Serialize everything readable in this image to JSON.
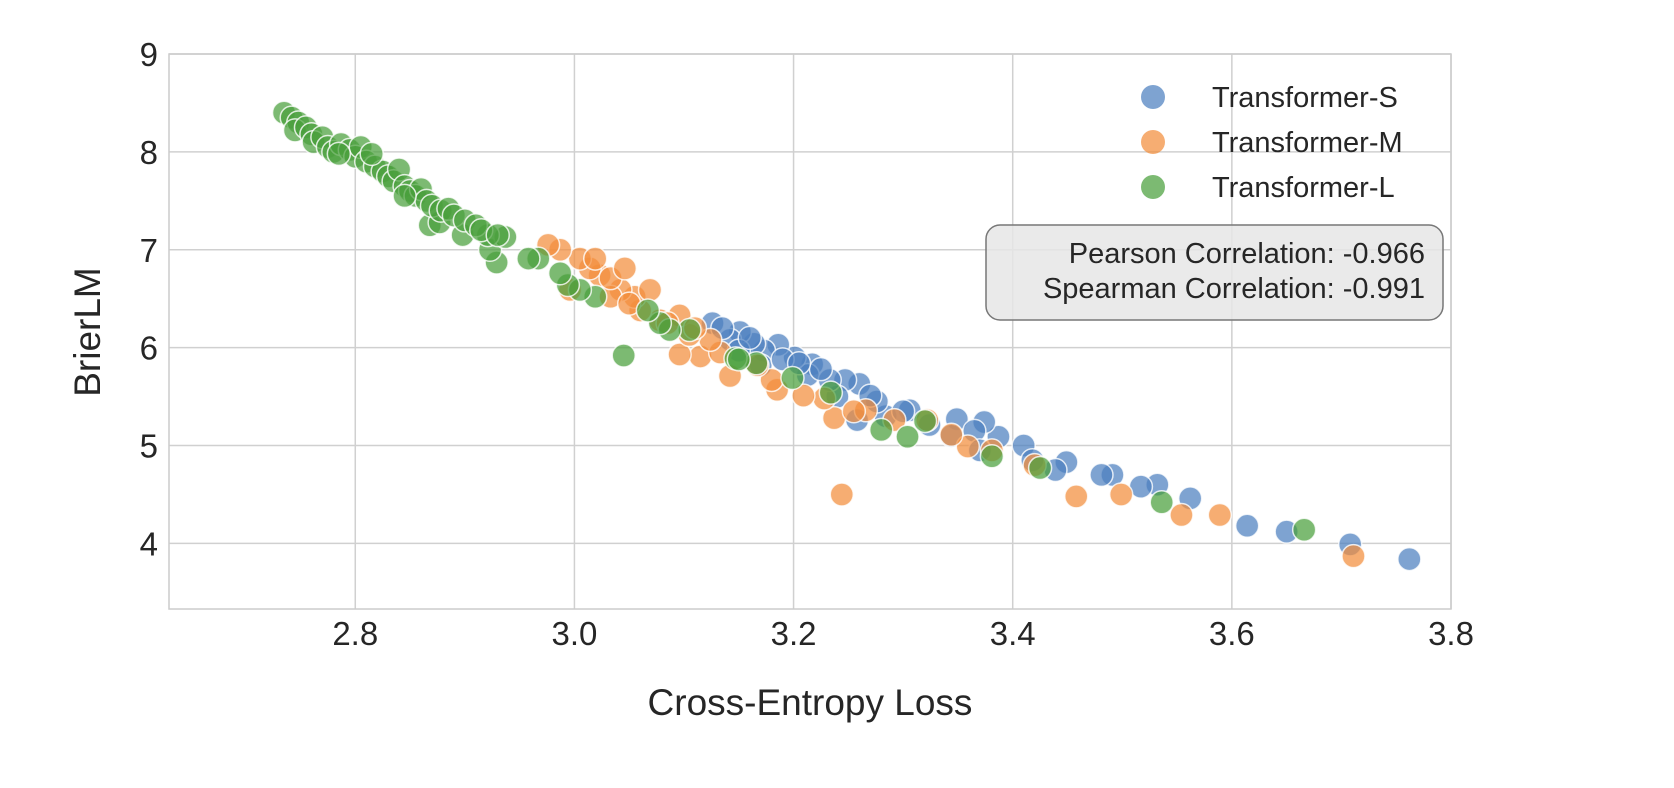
{
  "chart_data": {
    "type": "scatter",
    "title": "",
    "xlabel": "Cross-Entropy Loss",
    "ylabel": "BrierLM",
    "xlim": [
      2.63,
      3.8
    ],
    "ylim": [
      3.33,
      9.0
    ],
    "xticks": [
      "2.8",
      "3.0",
      "3.2",
      "3.4",
      "3.6",
      "3.8"
    ],
    "yticks": [
      "4",
      "5",
      "6",
      "7",
      "8",
      "9"
    ],
    "grid": true,
    "legend_position": "top-right",
    "annotation": {
      "lines": [
        "Pearson Correlation: -0.966",
        "Spearman Correlation: -0.991"
      ],
      "position": "right"
    },
    "series": [
      {
        "name": "Transformer-S",
        "color": "#4c7fbf",
        "points": [
          [
            3.708,
            3.99
          ],
          [
            3.762,
            3.84
          ],
          [
            3.65,
            4.12
          ],
          [
            3.614,
            4.18
          ],
          [
            3.562,
            4.46
          ],
          [
            3.532,
            4.6
          ],
          [
            3.517,
            4.58
          ],
          [
            3.491,
            4.7
          ],
          [
            3.481,
            4.7
          ],
          [
            3.449,
            4.83
          ],
          [
            3.439,
            4.75
          ],
          [
            3.41,
            5.0
          ],
          [
            3.418,
            4.85
          ],
          [
            3.387,
            5.09
          ],
          [
            3.374,
            5.24
          ],
          [
            3.349,
            5.27
          ],
          [
            3.344,
            5.1
          ],
          [
            3.324,
            5.21
          ],
          [
            3.306,
            5.36
          ],
          [
            3.284,
            5.3
          ],
          [
            3.276,
            5.45
          ],
          [
            3.26,
            5.63
          ],
          [
            3.258,
            5.26
          ],
          [
            3.247,
            5.67
          ],
          [
            3.24,
            5.5
          ],
          [
            3.217,
            5.83
          ],
          [
            3.213,
            5.72
          ],
          [
            3.201,
            5.9
          ],
          [
            3.186,
            6.03
          ],
          [
            3.173,
            5.97
          ],
          [
            3.164,
            6.04
          ],
          [
            3.151,
            6.16
          ],
          [
            3.142,
            6.08
          ],
          [
            3.126,
            6.25
          ],
          [
            3.17,
            5.82
          ],
          [
            3.15,
            5.97
          ],
          [
            3.233,
            5.67
          ],
          [
            3.27,
            5.51
          ],
          [
            3.19,
            5.88
          ],
          [
            3.225,
            5.78
          ],
          [
            3.16,
            6.1
          ],
          [
            3.135,
            6.2
          ],
          [
            3.205,
            5.84
          ],
          [
            3.3,
            5.35
          ],
          [
            3.365,
            5.15
          ],
          [
            3.37,
            4.95
          ]
        ]
      },
      {
        "name": "Transformer-M",
        "color": "#f28e3c",
        "points": [
          [
            3.711,
            3.87
          ],
          [
            3.589,
            4.29
          ],
          [
            3.554,
            4.29
          ],
          [
            3.499,
            4.5
          ],
          [
            3.458,
            4.48
          ],
          [
            3.244,
            4.5
          ],
          [
            3.42,
            4.8
          ],
          [
            3.359,
            4.99
          ],
          [
            3.381,
            4.95
          ],
          [
            3.344,
            5.11
          ],
          [
            3.322,
            5.26
          ],
          [
            3.292,
            5.26
          ],
          [
            3.266,
            5.36
          ],
          [
            3.237,
            5.28
          ],
          [
            3.228,
            5.48
          ],
          [
            3.209,
            5.51
          ],
          [
            3.185,
            5.57
          ],
          [
            3.18,
            5.67
          ],
          [
            3.142,
            5.71
          ],
          [
            3.167,
            5.82
          ],
          [
            3.115,
            5.91
          ],
          [
            3.096,
            5.93
          ],
          [
            3.133,
            5.95
          ],
          [
            3.124,
            6.08
          ],
          [
            3.105,
            6.13
          ],
          [
            3.096,
            6.33
          ],
          [
            3.078,
            6.28
          ],
          [
            3.06,
            6.38
          ],
          [
            3.055,
            6.52
          ],
          [
            3.042,
            6.59
          ],
          [
            3.033,
            6.52
          ],
          [
            3.023,
            6.74
          ],
          [
            3.014,
            6.81
          ],
          [
            3.005,
            6.91
          ],
          [
            2.996,
            6.59
          ],
          [
            2.987,
            7.0
          ],
          [
            2.976,
            7.05
          ],
          [
            3.033,
            6.71
          ],
          [
            3.046,
            6.81
          ],
          [
            3.069,
            6.59
          ],
          [
            3.019,
            6.91
          ],
          [
            3.05,
            6.45
          ],
          [
            3.085,
            6.25
          ],
          [
            3.11,
            6.2
          ],
          [
            3.255,
            5.35
          ]
        ]
      },
      {
        "name": "Transformer-L",
        "color": "#4aa03c",
        "points": [
          [
            3.666,
            4.14
          ],
          [
            3.536,
            4.42
          ],
          [
            3.425,
            4.77
          ],
          [
            3.381,
            4.89
          ],
          [
            3.304,
            5.09
          ],
          [
            3.28,
            5.16
          ],
          [
            3.234,
            5.54
          ],
          [
            3.199,
            5.69
          ],
          [
            3.166,
            5.84
          ],
          [
            3.147,
            5.89
          ],
          [
            3.045,
            5.92
          ],
          [
            3.105,
            6.18
          ],
          [
            3.087,
            6.18
          ],
          [
            3.078,
            6.25
          ],
          [
            3.067,
            6.38
          ],
          [
            3.019,
            6.52
          ],
          [
            3.005,
            6.59
          ],
          [
            2.994,
            6.64
          ],
          [
            2.987,
            6.76
          ],
          [
            2.967,
            6.91
          ],
          [
            2.958,
            6.91
          ],
          [
            2.929,
            6.87
          ],
          [
            2.923,
            7.0
          ],
          [
            2.937,
            7.13
          ],
          [
            2.921,
            7.15
          ],
          [
            2.898,
            7.15
          ],
          [
            2.868,
            7.25
          ],
          [
            2.877,
            7.28
          ],
          [
            2.735,
            8.4
          ],
          [
            2.742,
            8.35
          ],
          [
            2.748,
            8.3
          ],
          [
            2.745,
            8.22
          ],
          [
            2.755,
            8.25
          ],
          [
            2.76,
            8.18
          ],
          [
            2.762,
            8.1
          ],
          [
            2.77,
            8.15
          ],
          [
            2.775,
            8.05
          ],
          [
            2.78,
            8.0
          ],
          [
            2.787,
            8.08
          ],
          [
            2.795,
            8.02
          ],
          [
            2.8,
            7.95
          ],
          [
            2.805,
            8.05
          ],
          [
            2.81,
            7.9
          ],
          [
            2.818,
            7.85
          ],
          [
            2.825,
            7.8
          ],
          [
            2.83,
            7.75
          ],
          [
            2.835,
            7.7
          ],
          [
            2.84,
            7.82
          ],
          [
            2.845,
            7.65
          ],
          [
            2.85,
            7.6
          ],
          [
            2.855,
            7.55
          ],
          [
            2.86,
            7.62
          ],
          [
            2.865,
            7.5
          ],
          [
            2.87,
            7.45
          ],
          [
            2.878,
            7.4
          ],
          [
            2.885,
            7.42
          ],
          [
            2.89,
            7.35
          ],
          [
            2.9,
            7.3
          ],
          [
            2.91,
            7.25
          ],
          [
            2.915,
            7.2
          ],
          [
            2.93,
            7.15
          ],
          [
            2.785,
            7.98
          ],
          [
            2.815,
            7.98
          ],
          [
            2.845,
            7.55
          ],
          [
            3.32,
            5.25
          ],
          [
            3.15,
            5.88
          ]
        ]
      }
    ]
  }
}
